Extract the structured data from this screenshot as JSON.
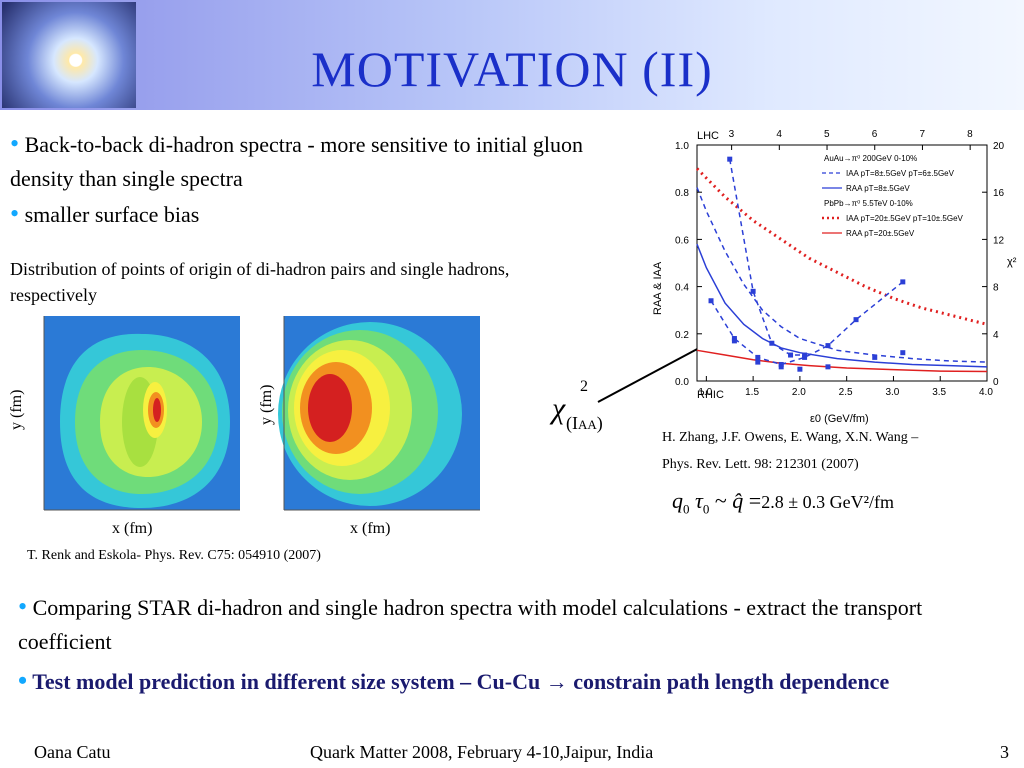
{
  "slide": {
    "title": "MOTIVATION (II)",
    "bullet1": "Back-to-back di-hadron spectra - more sensitive to initial gluon density than single spectra",
    "bullet2": "smaller surface bias",
    "distribution_note": "Distribution of points of origin of di-hadron pairs and single hadrons, respectively",
    "left_plots": {
      "xlabel": "x (fm)",
      "ylabel": "y (fm)",
      "citation": "T. Renk and Eskola- Phys. Rev. C75: 054910 (2007)"
    },
    "chi_label": "χ",
    "chi_sup": "2",
    "chi_sub": "(I",
    "chi_sub2": "AA",
    "chi_close": ")",
    "right_ref1": "H. Zhang, J.F. Owens, E. Wang, X.N. Wang –",
    "right_ref2": "Phys. Rev. Lett. 98: 212301 (2007)",
    "formula_value": "2.8 ± 0.3 GeV²/fm",
    "bullet3": "Comparing STAR di-hadron and single hadron spectra with model calculations - extract the transport coefficient",
    "bullet4": "Test model prediction in different size system – Cu-Cu → constrain path length dependence",
    "footer": {
      "author": "Oana Catu",
      "conference": "Quark Matter 2008, February 4-10,Jaipur, India",
      "page": "3"
    }
  },
  "chart_data": {
    "type": "line",
    "xlabel": "ε0 (GeV/fm)",
    "ylabel": "RAA & IAA",
    "y2label": "χ²",
    "top_axis_label": "LHC",
    "bottom_axis_label": "RHIC",
    "xlim": [
      0.9,
      4.0
    ],
    "ylim": [
      0.0,
      1.0
    ],
    "x_ticks": [
      "1.0",
      "1.5",
      "2.0",
      "2.5",
      "3.0",
      "3.5",
      "4.0"
    ],
    "x_tick_values": [
      1.0,
      1.5,
      2.0,
      2.5,
      3.0,
      3.5,
      4.0
    ],
    "y_ticks": [
      "0.0",
      "0.2",
      "0.4",
      "0.6",
      "0.8",
      "1.0"
    ],
    "y_tick_values": [
      0.0,
      0.2,
      0.4,
      0.6,
      0.8,
      1.0
    ],
    "y2_ticks": [
      "0",
      "4",
      "8",
      "12",
      "16",
      "20"
    ],
    "y2_tick_values": [
      0.0,
      0.2,
      0.4,
      0.6,
      0.8,
      1.0
    ],
    "top_ticks": [
      "3",
      "4",
      "5",
      "6",
      "7",
      "8"
    ],
    "top_tick_values": [
      1.27,
      1.78,
      2.29,
      2.8,
      3.31,
      3.82
    ],
    "legend": [
      "AuAu→π⁰ 200GeV 0-10%",
      "IAA pT=8±.5GeV pT=6±.5GeV",
      "RAA pT=8±.5GeV",
      "PbPb→π⁰ 5.5TeV 0-10%",
      "IAA pT=20±.5GeV pT=10±.5GeV",
      "RAA pT=20±.5GeV"
    ],
    "series": [
      {
        "name": "IAA pT=8±.5GeV pT=6±.5GeV",
        "style": "dashed",
        "color": "#2b3fd6",
        "x": [
          0.9,
          1.0,
          1.2,
          1.4,
          1.6,
          1.8,
          2.0,
          2.4,
          2.8,
          3.2,
          3.6,
          4.0
        ],
        "y": [
          0.82,
          0.72,
          0.55,
          0.41,
          0.3,
          0.23,
          0.18,
          0.13,
          0.11,
          0.095,
          0.085,
          0.08
        ]
      },
      {
        "name": "RAA pT=8±.5GeV",
        "style": "solid",
        "color": "#2b3fd6",
        "x": [
          0.9,
          1.0,
          1.2,
          1.4,
          1.6,
          1.8,
          2.0,
          2.4,
          2.8,
          3.2,
          3.6,
          4.0
        ],
        "y": [
          0.58,
          0.48,
          0.33,
          0.24,
          0.18,
          0.14,
          0.12,
          0.095,
          0.08,
          0.07,
          0.065,
          0.06
        ]
      },
      {
        "name": "IAA pT=20±.5GeV pT=10±.5GeV",
        "style": "dotted",
        "color": "#e02020",
        "x": [
          0.9,
          1.2,
          1.5,
          1.8,
          2.1,
          2.4,
          2.7,
          3.0,
          3.3,
          3.6,
          4.0
        ],
        "y": [
          0.9,
          0.78,
          0.68,
          0.6,
          0.52,
          0.46,
          0.4,
          0.35,
          0.31,
          0.28,
          0.24
        ]
      },
      {
        "name": "RAA pT=20±.5GeV",
        "style": "solid",
        "color": "#e02020",
        "x": [
          0.9,
          1.2,
          1.5,
          1.8,
          2.1,
          2.5,
          3.0,
          3.5,
          4.0
        ],
        "y": [
          0.13,
          0.11,
          0.09,
          0.075,
          0.065,
          0.055,
          0.048,
          0.042,
          0.04
        ]
      },
      {
        "name": "χ²(IAA)",
        "style": "dashed-markers",
        "color": "#2b3fd6",
        "x": [
          1.25,
          1.5,
          1.7,
          1.9,
          2.05
        ],
        "y": [
          0.94,
          0.38,
          0.16,
          0.11,
          0.11
        ]
      },
      {
        "name": "χ²(RAA)",
        "style": "dashed-markers",
        "color": "#2b3fd6",
        "x": [
          1.05,
          1.3,
          1.55,
          1.8,
          2.05,
          2.3,
          2.6,
          3.1
        ],
        "y": [
          0.34,
          0.18,
          0.1,
          0.07,
          0.1,
          0.15,
          0.26,
          0.42
        ]
      },
      {
        "name": "χ² RAA",
        "style": "markers",
        "color": "#2b3fd6",
        "x": [
          1.3,
          1.55,
          1.8,
          2.0,
          2.3,
          2.8,
          3.1
        ],
        "y": [
          0.17,
          0.08,
          0.06,
          0.05,
          0.06,
          0.1,
          0.12
        ]
      }
    ]
  }
}
